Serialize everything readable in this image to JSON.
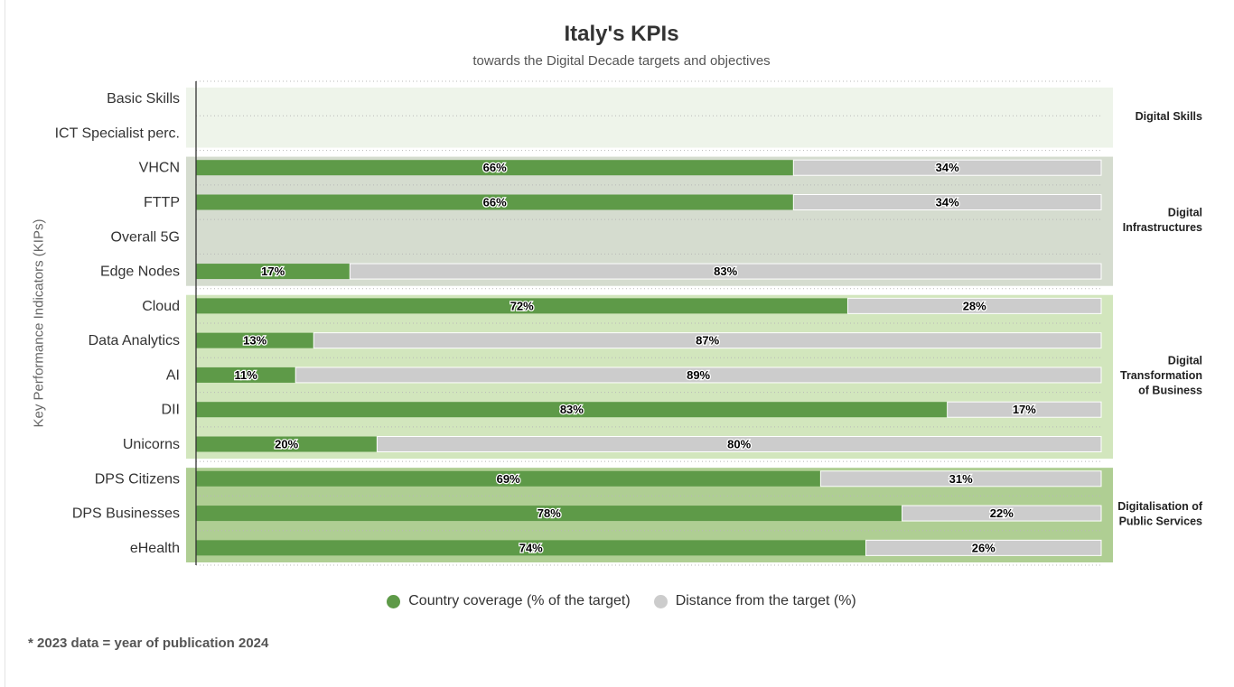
{
  "chart_data": {
    "type": "bar",
    "orientation": "horizontal",
    "stacked": true,
    "title": "Italy's KPIs",
    "subtitle": "towards the Digital Decade targets and objectives",
    "ylabel": "Key Performance Indicators (KIPs)",
    "xlim": [
      0,
      100
    ],
    "grid": true,
    "legend_position": "bottom",
    "categories": [
      "Basic Skills",
      "ICT Specialist perc.",
      "VHCN",
      "FTTP",
      "Overall 5G",
      "Edge Nodes",
      "Cloud",
      "Data Analytics",
      "AI",
      "DII",
      "Unicorns",
      "DPS Citizens",
      "DPS Businesses",
      "eHealth"
    ],
    "series": [
      {
        "name": "Country coverage (% of the target)",
        "color": "#5e9a48",
        "values": [
          null,
          null,
          66,
          66,
          null,
          17,
          72,
          13,
          11,
          83,
          20,
          69,
          78,
          74
        ]
      },
      {
        "name": "Distance from the target (%)",
        "color": "#cccccc",
        "values": [
          null,
          null,
          34,
          34,
          null,
          83,
          28,
          87,
          89,
          17,
          80,
          31,
          22,
          26
        ]
      }
    ],
    "data_label_suffix": "%",
    "groups": [
      {
        "lines": [
          "Digital Skills"
        ],
        "first": 0,
        "last": 1,
        "color": "#eef4ea"
      },
      {
        "lines": [
          "Digital",
          "Infrastructures"
        ],
        "first": 2,
        "last": 5,
        "color": "#d5dccf"
      },
      {
        "lines": [
          "Digital",
          "Transformation",
          "of Business"
        ],
        "first": 6,
        "last": 10,
        "color": "#d2e6bd"
      },
      {
        "lines": [
          "Digitalisation of",
          "Public Services"
        ],
        "first": 11,
        "last": 13,
        "color": "#afce93"
      }
    ]
  },
  "legend": {
    "coverage_label": "Country coverage (% of the target)",
    "distance_label": "Distance from the target (%)",
    "coverage_color": "#5e9a48",
    "distance_color": "#cccccc"
  },
  "footnote": "* 2023 data = year of publication 2024"
}
